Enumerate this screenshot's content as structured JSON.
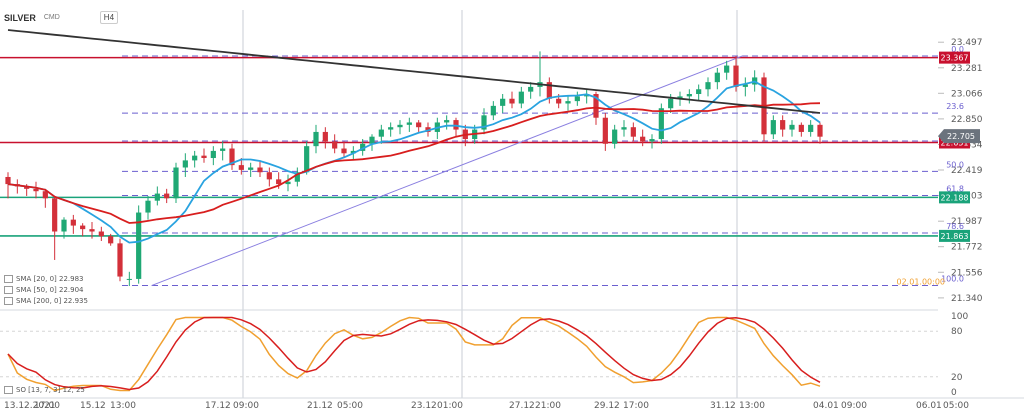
{
  "header": {
    "symbol": "SILVER",
    "source": "CMD",
    "timeframe": "H4"
  },
  "indicators": [
    {
      "label": "SMA [20, 0] 22.983",
      "color": "#29a3e0"
    },
    {
      "label": "SMA [50, 0] 22.904",
      "color": "#d81e1e"
    },
    {
      "label": "SMA [200, 0] 22.935",
      "color": "#333333"
    }
  ],
  "oscillator_label": "SO [13, 7, 3] 12, 25",
  "chart_data": {
    "type": "candlestick",
    "y_range": [
      21.28,
      23.6
    ],
    "price_axis": [
      "23.497",
      "23.281",
      "23.066",
      "22.850",
      "22.634",
      "22.419",
      "22.203",
      "21.987",
      "21.772",
      "21.556",
      "21.340"
    ],
    "time_axis": [
      "13.12.2021",
      "17:00",
      "15.12",
      "13:00",
      "17.12",
      "09:00",
      "21.12",
      "05:00",
      "23.12",
      "01:00",
      "27.12",
      "21:00",
      "29.12",
      "17:00",
      "31.12",
      "13:00",
      "04.01",
      "09:00",
      "06.01",
      "05:00"
    ],
    "time_label_spans": [
      {
        "parts": [
          0,
          1
        ]
      },
      {
        "parts": [
          2,
          3
        ]
      },
      {
        "parts": [
          4,
          5
        ]
      },
      {
        "parts": [
          6,
          7
        ]
      },
      {
        "parts": [
          8,
          9
        ]
      },
      {
        "parts": [
          10,
          11
        ]
      },
      {
        "parts": [
          12,
          13
        ]
      },
      {
        "parts": [
          14,
          15
        ]
      },
      {
        "parts": [
          16,
          17
        ]
      },
      {
        "parts": [
          18,
          19
        ]
      }
    ],
    "current_price": "22.705",
    "current_price_value": 22.705,
    "ask_value": 22.651,
    "ask_label": "22.651",
    "horizontal_levels": [
      {
        "label": "23.367",
        "value": 23.367,
        "color": "#c8102e"
      },
      {
        "label": "22.651",
        "value": 22.651,
        "color": "#c8102e"
      },
      {
        "label": "22.188",
        "value": 22.188,
        "color": "#1aa37a"
      },
      {
        "label": "21.863",
        "value": 21.863,
        "color": "#1aa37a"
      }
    ],
    "fibonacci": [
      {
        "label": "0.0",
        "value": 23.381
      },
      {
        "label": "23.6",
        "value": 22.899
      },
      {
        "label": "38.2",
        "value": 22.664
      },
      {
        "label": "50.0",
        "value": 22.407
      },
      {
        "label": "61.8",
        "value": 22.204
      },
      {
        "label": "78.6",
        "value": 21.887
      },
      {
        "label": "100.0",
        "value": 21.444
      }
    ],
    "fib_extra_label": "02.01.00:00",
    "trendline": {
      "x0": 0.148,
      "y0": 21.444,
      "x1": 0.725,
      "y1": 23.381
    },
    "candles": [
      [
        22.36,
        22.4,
        22.18,
        22.3
      ],
      [
        22.3,
        22.34,
        22.22,
        22.28
      ],
      [
        22.28,
        22.3,
        22.2,
        22.26
      ],
      [
        22.26,
        22.32,
        22.18,
        22.24
      ],
      [
        22.24,
        22.26,
        22.1,
        22.18
      ],
      [
        22.18,
        22.2,
        21.66,
        21.9
      ],
      [
        21.9,
        22.02,
        21.84,
        22.0
      ],
      [
        22.0,
        22.04,
        21.88,
        21.95
      ],
      [
        21.95,
        21.97,
        21.86,
        21.92
      ],
      [
        21.92,
        21.98,
        21.84,
        21.9
      ],
      [
        21.9,
        21.94,
        21.82,
        21.86
      ],
      [
        21.86,
        21.88,
        21.78,
        21.8
      ],
      [
        21.8,
        21.84,
        21.48,
        21.52
      ],
      [
        21.5,
        21.56,
        21.44,
        21.5
      ],
      [
        21.5,
        22.12,
        21.46,
        22.06
      ],
      [
        22.06,
        22.2,
        22.0,
        22.16
      ],
      [
        22.16,
        22.28,
        22.12,
        22.22
      ],
      [
        22.22,
        22.26,
        22.14,
        22.18
      ],
      [
        22.18,
        22.48,
        22.14,
        22.44
      ],
      [
        22.44,
        22.56,
        22.36,
        22.5
      ],
      [
        22.5,
        22.58,
        22.44,
        22.54
      ],
      [
        22.54,
        22.6,
        22.48,
        22.52
      ],
      [
        22.52,
        22.62,
        22.46,
        22.58
      ],
      [
        22.58,
        22.66,
        22.5,
        22.6
      ],
      [
        22.6,
        22.64,
        22.42,
        22.46
      ],
      [
        22.46,
        22.52,
        22.38,
        22.42
      ],
      [
        22.42,
        22.48,
        22.36,
        22.44
      ],
      [
        22.44,
        22.5,
        22.36,
        22.4
      ],
      [
        22.4,
        22.44,
        22.28,
        22.34
      ],
      [
        22.34,
        22.4,
        22.26,
        22.3
      ],
      [
        22.3,
        22.38,
        22.24,
        22.32
      ],
      [
        22.32,
        22.44,
        22.28,
        22.4
      ],
      [
        22.4,
        22.66,
        22.38,
        22.62
      ],
      [
        22.62,
        22.8,
        22.56,
        22.74
      ],
      [
        22.74,
        22.78,
        22.6,
        22.66
      ],
      [
        22.66,
        22.72,
        22.56,
        22.6
      ],
      [
        22.6,
        22.66,
        22.52,
        22.56
      ],
      [
        22.56,
        22.62,
        22.5,
        22.58
      ],
      [
        22.58,
        22.68,
        22.54,
        22.64
      ],
      [
        22.64,
        22.72,
        22.58,
        22.7
      ],
      [
        22.7,
        22.8,
        22.64,
        22.76
      ],
      [
        22.76,
        22.82,
        22.7,
        22.78
      ],
      [
        22.78,
        22.84,
        22.72,
        22.8
      ],
      [
        22.8,
        22.86,
        22.74,
        22.82
      ],
      [
        22.82,
        22.84,
        22.74,
        22.78
      ],
      [
        22.78,
        22.82,
        22.7,
        22.74
      ],
      [
        22.74,
        22.86,
        22.68,
        22.82
      ],
      [
        22.82,
        22.88,
        22.76,
        22.84
      ],
      [
        22.84,
        22.86,
        22.7,
        22.76
      ],
      [
        22.76,
        22.8,
        22.62,
        22.68
      ],
      [
        22.68,
        22.8,
        22.64,
        22.76
      ],
      [
        22.76,
        22.94,
        22.72,
        22.88
      ],
      [
        22.88,
        23.0,
        22.84,
        22.96
      ],
      [
        22.96,
        23.06,
        22.9,
        23.02
      ],
      [
        23.02,
        23.08,
        22.94,
        22.98
      ],
      [
        22.98,
        23.12,
        22.94,
        23.08
      ],
      [
        23.08,
        23.16,
        23.02,
        23.12
      ],
      [
        23.12,
        23.42,
        23.04,
        23.16
      ],
      [
        23.16,
        23.2,
        22.98,
        23.02
      ],
      [
        23.02,
        23.06,
        22.94,
        22.98
      ],
      [
        22.98,
        23.04,
        22.92,
        23.0
      ],
      [
        23.0,
        23.08,
        22.96,
        23.04
      ],
      [
        23.04,
        23.1,
        22.98,
        23.06
      ],
      [
        23.06,
        23.08,
        22.8,
        22.86
      ],
      [
        22.86,
        22.9,
        22.58,
        22.64
      ],
      [
        22.64,
        22.8,
        22.6,
        22.76
      ],
      [
        22.76,
        22.84,
        22.7,
        22.78
      ],
      [
        22.78,
        22.82,
        22.66,
        22.7
      ],
      [
        22.7,
        22.76,
        22.62,
        22.66
      ],
      [
        22.66,
        22.72,
        22.6,
        22.68
      ],
      [
        22.68,
        22.98,
        22.64,
        22.94
      ],
      [
        22.94,
        23.06,
        22.9,
        23.02
      ],
      [
        23.02,
        23.08,
        22.96,
        23.04
      ],
      [
        23.04,
        23.1,
        22.98,
        23.06
      ],
      [
        23.06,
        23.14,
        23.0,
        23.1
      ],
      [
        23.1,
        23.2,
        23.04,
        23.16
      ],
      [
        23.16,
        23.28,
        23.1,
        23.24
      ],
      [
        23.24,
        23.34,
        23.18,
        23.3
      ],
      [
        23.3,
        23.38,
        23.08,
        23.12
      ],
      [
        23.12,
        23.2,
        23.04,
        23.14
      ],
      [
        23.14,
        23.26,
        23.08,
        23.2
      ],
      [
        23.2,
        23.24,
        22.66,
        22.72
      ],
      [
        22.72,
        22.88,
        22.68,
        22.84
      ],
      [
        22.84,
        22.88,
        22.7,
        22.76
      ],
      [
        22.76,
        22.84,
        22.7,
        22.8
      ],
      [
        22.8,
        22.82,
        22.7,
        22.74
      ],
      [
        22.74,
        22.84,
        22.7,
        22.8
      ],
      [
        22.8,
        22.82,
        22.64,
        22.7
      ]
    ],
    "so_range": [
      0,
      100
    ],
    "so_axis": [
      "100",
      "80",
      "20",
      "0"
    ]
  }
}
